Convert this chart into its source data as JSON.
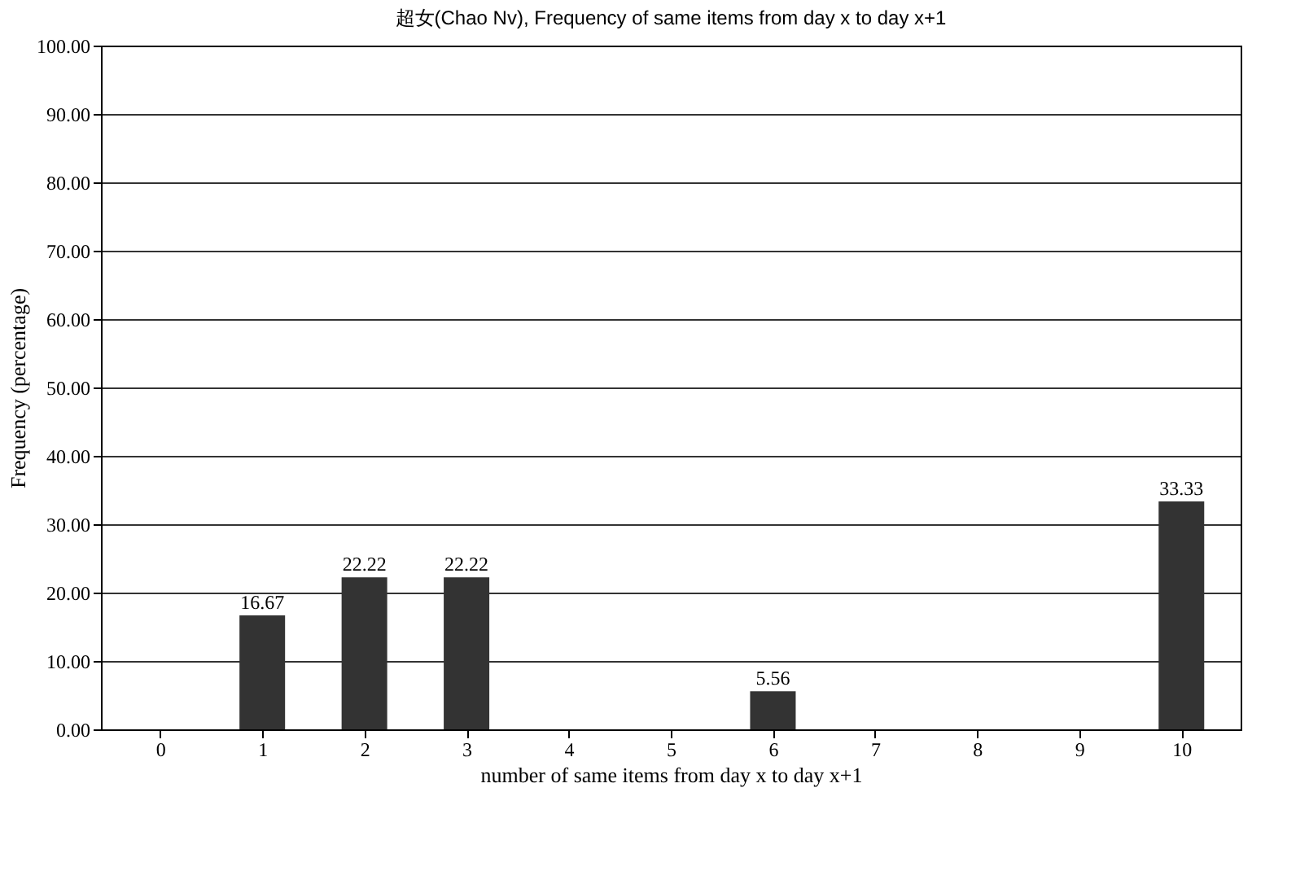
{
  "chart_data": {
    "type": "bar",
    "title": "超女(Chao Nv), Frequency of same items from day x to day x+1",
    "xlabel": "number of same items from day x to day x+1",
    "ylabel": "Frequency (percentage)",
    "categories": [
      "0",
      "1",
      "2",
      "3",
      "4",
      "5",
      "6",
      "7",
      "8",
      "9",
      "10"
    ],
    "values": [
      0,
      16.67,
      22.22,
      22.22,
      0,
      0,
      5.56,
      0,
      0,
      0,
      33.33
    ],
    "value_labels": [
      null,
      "16.67",
      "22.22",
      "22.22",
      null,
      null,
      "5.56",
      null,
      null,
      null,
      "33.33"
    ],
    "color": "#333333",
    "ylim": [
      0,
      100
    ],
    "yticks": [
      {
        "value": 0,
        "label": "0.00"
      },
      {
        "value": 10,
        "label": "10.00"
      },
      {
        "value": 20,
        "label": "20.00"
      },
      {
        "value": 30,
        "label": "30.00"
      },
      {
        "value": 40,
        "label": "40.00"
      },
      {
        "value": 50,
        "label": "50.00"
      },
      {
        "value": 60,
        "label": "60.00"
      },
      {
        "value": 70,
        "label": "70.00"
      },
      {
        "value": 80,
        "label": "80.00"
      },
      {
        "value": 90,
        "label": "90.00"
      },
      {
        "value": 100,
        "label": "100.00"
      }
    ],
    "grid": "y"
  }
}
